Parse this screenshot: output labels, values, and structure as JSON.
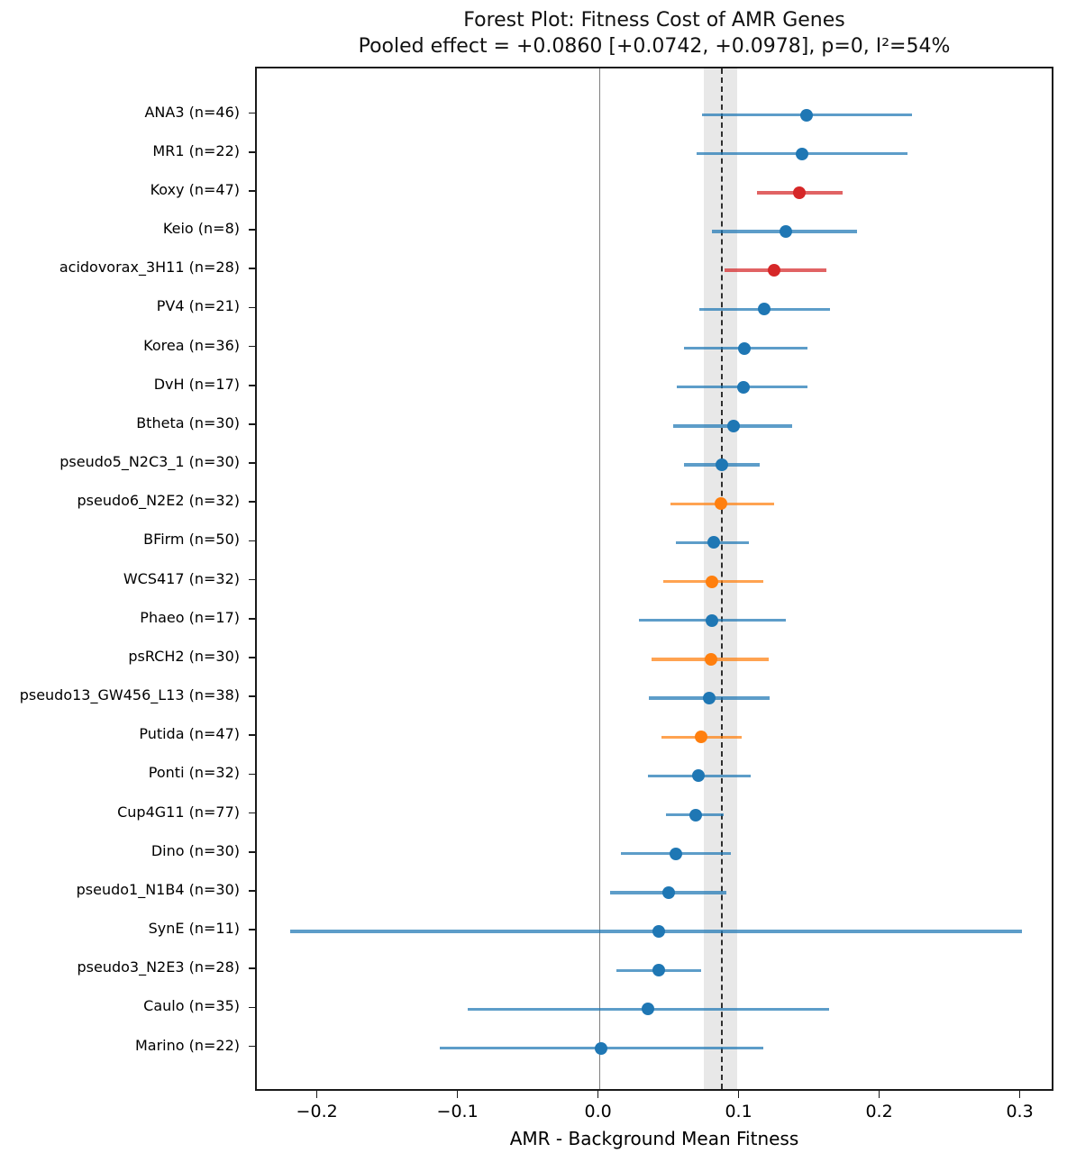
{
  "chart_data": {
    "type": "scatter",
    "variant": "forest-plot",
    "title": "Forest Plot: Fitness Cost of AMR Genes",
    "subtitle": "Pooled effect = +0.0860 [+0.0742, +0.0978], p=0, I²=54%",
    "xlabel": "AMR - Background Mean Fitness",
    "xlim": [
      -0.244,
      0.324
    ],
    "grid": false,
    "legend": false,
    "x_ticks": [
      {
        "value": -0.2,
        "label": "−0.2"
      },
      {
        "value": -0.1,
        "label": "−0.1"
      },
      {
        "value": 0.0,
        "label": "0.0"
      },
      {
        "value": 0.1,
        "label": "0.1"
      },
      {
        "value": 0.2,
        "label": "0.2"
      },
      {
        "value": 0.3,
        "label": "0.3"
      }
    ],
    "zero_line_value": 0.0,
    "pooled": {
      "effect": 0.086,
      "ci_low": 0.0742,
      "ci_high": 0.0978,
      "p": "0",
      "i_squared": "54%"
    },
    "colors": {
      "blue": "#1f77b4",
      "orange": "#ff7f0e",
      "red": "#d62728",
      "band": "rgba(0,0,0,0.09)",
      "zero_line": "#808080",
      "pooled_line": "#2e2e2e",
      "spine": "#1a1a1a"
    },
    "studies": [
      {
        "display": "ANA3 (n=46)",
        "label": "ANA3",
        "n": 46,
        "estimate": 0.147,
        "ci_low": 0.073,
        "ci_high": 0.222,
        "color": "blue"
      },
      {
        "display": "MR1 (n=22)",
        "label": "MR1",
        "n": 22,
        "estimate": 0.144,
        "ci_low": 0.069,
        "ci_high": 0.219,
        "color": "blue"
      },
      {
        "display": "Koxy (n=47)",
        "label": "Koxy",
        "n": 47,
        "estimate": 0.142,
        "ci_low": 0.112,
        "ci_high": 0.173,
        "color": "red"
      },
      {
        "display": "Keio (n=8)",
        "label": "Keio",
        "n": 8,
        "estimate": 0.132,
        "ci_low": 0.08,
        "ci_high": 0.183,
        "color": "blue"
      },
      {
        "display": "acidovorax_3H11 (n=28)",
        "label": "acidovorax_3H11",
        "n": 28,
        "estimate": 0.124,
        "ci_low": 0.089,
        "ci_high": 0.161,
        "color": "red"
      },
      {
        "display": "PV4 (n=21)",
        "label": "PV4",
        "n": 21,
        "estimate": 0.117,
        "ci_low": 0.071,
        "ci_high": 0.164,
        "color": "blue"
      },
      {
        "display": "Korea (n=36)",
        "label": "Korea",
        "n": 36,
        "estimate": 0.103,
        "ci_low": 0.06,
        "ci_high": 0.148,
        "color": "blue"
      },
      {
        "display": "DvH (n=17)",
        "label": "DvH",
        "n": 17,
        "estimate": 0.102,
        "ci_low": 0.055,
        "ci_high": 0.148,
        "color": "blue"
      },
      {
        "display": "Btheta (n=30)",
        "label": "Btheta",
        "n": 30,
        "estimate": 0.095,
        "ci_low": 0.052,
        "ci_high": 0.137,
        "color": "blue"
      },
      {
        "display": "pseudo5_N2C3_1 (n=30)",
        "label": "pseudo5_N2C3_1",
        "n": 30,
        "estimate": 0.087,
        "ci_low": 0.06,
        "ci_high": 0.114,
        "color": "blue"
      },
      {
        "display": "pseudo6_N2E2 (n=32)",
        "label": "pseudo6_N2E2",
        "n": 32,
        "estimate": 0.086,
        "ci_low": 0.05,
        "ci_high": 0.124,
        "color": "orange"
      },
      {
        "display": "BFirm (n=50)",
        "label": "BFirm",
        "n": 50,
        "estimate": 0.081,
        "ci_low": 0.054,
        "ci_high": 0.106,
        "color": "blue"
      },
      {
        "display": "WCS417 (n=32)",
        "label": "WCS417",
        "n": 32,
        "estimate": 0.08,
        "ci_low": 0.045,
        "ci_high": 0.116,
        "color": "orange"
      },
      {
        "display": "Phaeo (n=17)",
        "label": "Phaeo",
        "n": 17,
        "estimate": 0.08,
        "ci_low": 0.028,
        "ci_high": 0.132,
        "color": "blue"
      },
      {
        "display": "psRCH2 (n=30)",
        "label": "psRCH2",
        "n": 30,
        "estimate": 0.079,
        "ci_low": 0.037,
        "ci_high": 0.12,
        "color": "orange"
      },
      {
        "display": "pseudo13_GW456_L13 (n=38)",
        "label": "pseudo13_GW456_L13",
        "n": 38,
        "estimate": 0.078,
        "ci_low": 0.035,
        "ci_high": 0.121,
        "color": "blue"
      },
      {
        "display": "Putida (n=47)",
        "label": "Putida",
        "n": 47,
        "estimate": 0.072,
        "ci_low": 0.044,
        "ci_high": 0.101,
        "color": "orange"
      },
      {
        "display": "Ponti (n=32)",
        "label": "Ponti",
        "n": 32,
        "estimate": 0.07,
        "ci_low": 0.034,
        "ci_high": 0.107,
        "color": "blue"
      },
      {
        "display": "Cup4G11 (n=77)",
        "label": "Cup4G11",
        "n": 77,
        "estimate": 0.068,
        "ci_low": 0.047,
        "ci_high": 0.088,
        "color": "blue"
      },
      {
        "display": "Dino (n=30)",
        "label": "Dino",
        "n": 30,
        "estimate": 0.054,
        "ci_low": 0.015,
        "ci_high": 0.093,
        "color": "blue"
      },
      {
        "display": "pseudo1_N1B4 (n=30)",
        "label": "pseudo1_N1B4",
        "n": 30,
        "estimate": 0.049,
        "ci_low": 0.007,
        "ci_high": 0.09,
        "color": "blue"
      },
      {
        "display": "SynE (n=11)",
        "label": "SynE",
        "n": 11,
        "estimate": 0.042,
        "ci_low": -0.22,
        "ci_high": 0.3,
        "color": "blue"
      },
      {
        "display": "pseudo3_N2E3 (n=28)",
        "label": "pseudo3_N2E3",
        "n": 28,
        "estimate": 0.042,
        "ci_low": 0.012,
        "ci_high": 0.072,
        "color": "blue"
      },
      {
        "display": "Caulo (n=35)",
        "label": "Caulo",
        "n": 35,
        "estimate": 0.034,
        "ci_low": -0.094,
        "ci_high": 0.163,
        "color": "blue"
      },
      {
        "display": "Marino (n=22)",
        "label": "Marino",
        "n": 22,
        "estimate": 0.001,
        "ci_low": -0.114,
        "ci_high": 0.116,
        "color": "blue"
      }
    ]
  }
}
